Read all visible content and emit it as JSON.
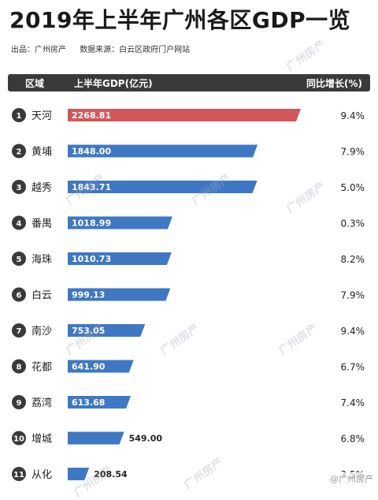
{
  "title": "2019年上半年广州各区GDP一览",
  "source": {
    "origin": "出品：广州房产",
    "data_source": "数据来源：白云区政府门户网站"
  },
  "header": {
    "col_district": "区域",
    "col_gdp": "上半年GDP(亿元)",
    "col_growth": "同比增长(%)"
  },
  "watermark": "广州房产",
  "corner_mark": "@广州房产",
  "colors": {
    "highlight": "#d0585a",
    "bar": "#3f78c2",
    "header_bg": "#3a3a3a",
    "badge": "#3a3a3a"
  },
  "chart_data": {
    "type": "bar",
    "orientation": "horizontal",
    "title": "2019年上半年广州各区GDP一览",
    "ranks": [
      "1",
      "2",
      "3",
      "4",
      "5",
      "6",
      "7",
      "8",
      "9",
      "10",
      "11"
    ],
    "categories": [
      "天河",
      "黄埔",
      "越秀",
      "番禺",
      "海珠",
      "白云",
      "南沙",
      "花都",
      "荔湾",
      "增城",
      "从化"
    ],
    "values": [
      2268.81,
      1848.0,
      1843.71,
      1018.99,
      1010.73,
      999.13,
      753.05,
      641.9,
      613.68,
      549.0,
      208.54
    ],
    "value_labels": [
      "2268.81",
      "1848.00",
      "1843.71",
      "1018.99",
      "1010.73",
      "999.13",
      "753.05",
      "641.90",
      "613.68",
      "549.00",
      "208.54"
    ],
    "growth": [
      "9.4%",
      "7.9%",
      "5.0%",
      "0.3%",
      "8.2%",
      "7.9%",
      "9.4%",
      "6.7%",
      "7.4%",
      "6.8%",
      "3.5%"
    ]
  }
}
